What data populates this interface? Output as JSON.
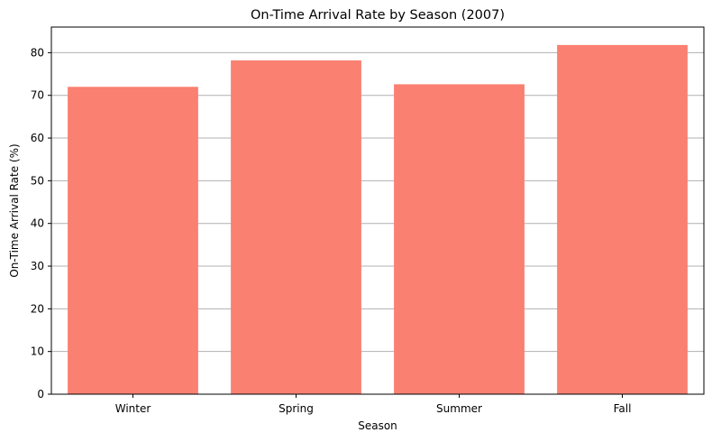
{
  "chart_data": {
    "type": "bar",
    "title": "On-Time Arrival Rate by Season (2007)",
    "xlabel": "Season",
    "ylabel": "On-Time Arrival Rate (%)",
    "categories": [
      "Winter",
      "Spring",
      "Summer",
      "Fall"
    ],
    "values": [
      72.0,
      78.2,
      72.6,
      81.8
    ],
    "ylim": [
      0,
      86
    ],
    "yticks": [
      0,
      10,
      20,
      30,
      40,
      50,
      60,
      70,
      80
    ],
    "grid": "y",
    "bar_color": "#fa8072",
    "grid_color": "#b0b0b0"
  }
}
